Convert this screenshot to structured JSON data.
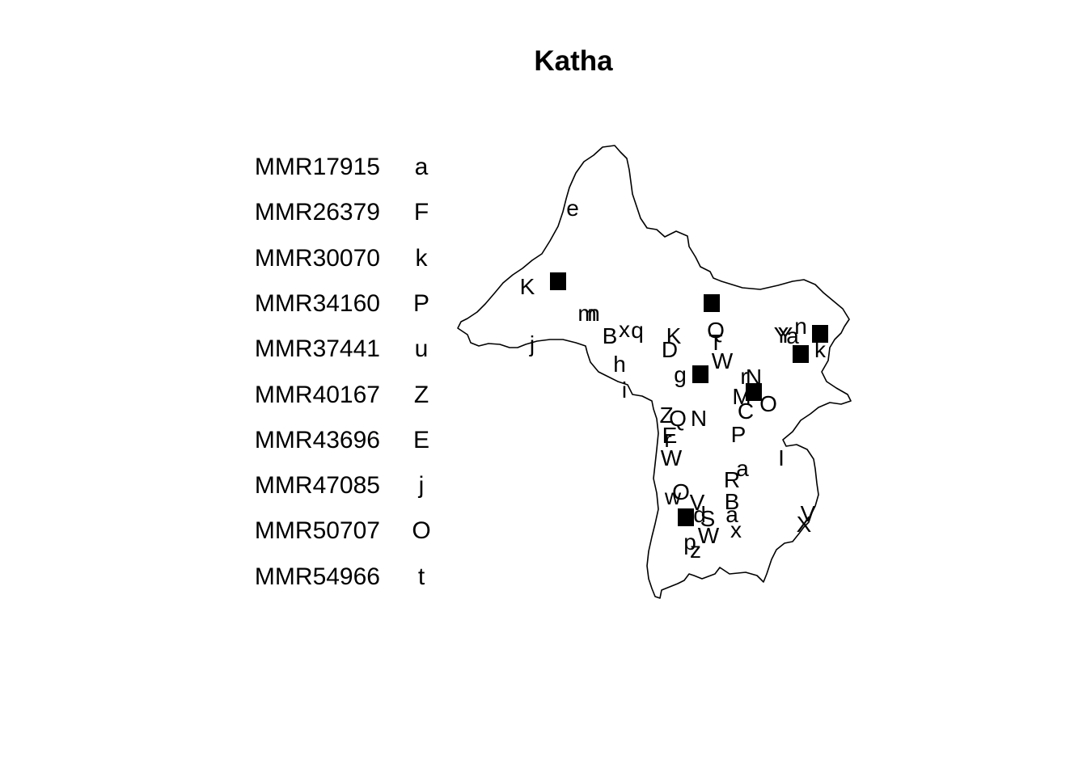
{
  "title": "Katha",
  "legend": [
    {
      "code": "MMR17915",
      "symbol": "a"
    },
    {
      "code": "MMR26379",
      "symbol": "F"
    },
    {
      "code": "MMR30070",
      "symbol": "k"
    },
    {
      "code": "MMR34160",
      "symbol": "P"
    },
    {
      "code": "MMR37441",
      "symbol": "u"
    },
    {
      "code": "MMR40167",
      "symbol": "Z"
    },
    {
      "code": "MMR43696",
      "symbol": "E"
    },
    {
      "code": "MMR47085",
      "symbol": "j"
    },
    {
      "code": "MMR50707",
      "symbol": "O"
    },
    {
      "code": "MMR54966",
      "symbol": "t"
    }
  ],
  "map": {
    "region_name": "Katha",
    "outline_color": "#000000",
    "marker_color": "#000000",
    "marker_glyphs": [
      "e",
      "K",
      "j",
      "m",
      "n",
      "B",
      "x",
      "q",
      "h",
      "i",
      "g",
      "K",
      "Q",
      "T",
      "Y",
      "a",
      "n",
      "k",
      "D",
      "W",
      "r",
      "N",
      "M",
      "C",
      "O",
      "Q",
      "N",
      "Z",
      "P",
      "E",
      "r",
      "W",
      "a",
      "R",
      "B",
      "w",
      "O",
      "V",
      "d",
      "p",
      "S",
      "x",
      "z",
      "W",
      "V",
      "X",
      "I",
      "Y",
      "a"
    ]
  }
}
